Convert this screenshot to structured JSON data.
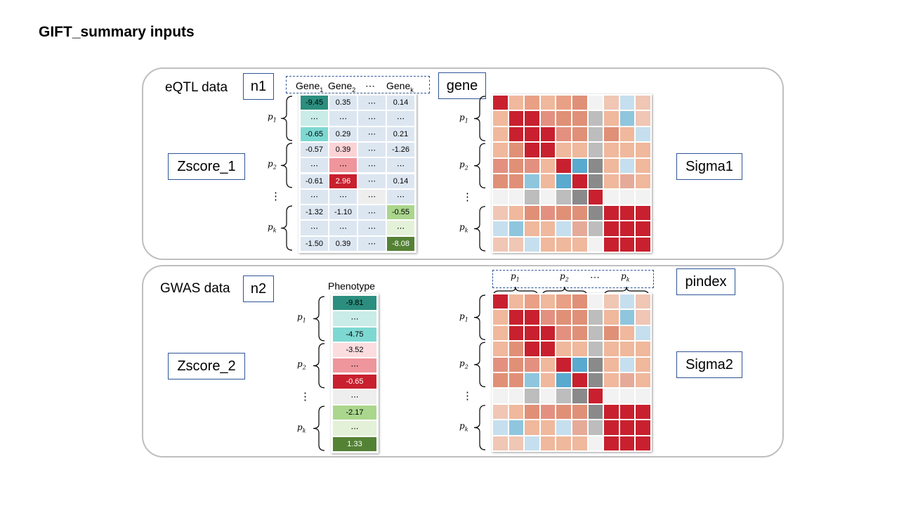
{
  "title": "GIFT_summary inputs",
  "panel1": {
    "label": "eQTL data",
    "n_box": "n1",
    "gene_box": "gene",
    "z_box": "Zscore_1",
    "sigma_box": "Sigma1",
    "col_headers": [
      "Gene",
      "Gene",
      "⋯",
      "Gene"
    ],
    "col_subs": [
      "1",
      "2",
      "",
      "k"
    ],
    "rows": [
      [
        "-9.45",
        "0.35",
        "⋯",
        "0.14"
      ],
      [
        "⋯",
        "⋯",
        "⋯",
        "⋯"
      ],
      [
        "-0.65",
        "0.29",
        "⋯",
        "0.21"
      ],
      [
        "-0.57",
        "0.39",
        "⋯",
        "-1.26"
      ],
      [
        "⋯",
        "⋯",
        "⋯",
        "⋯"
      ],
      [
        "-0.61",
        "2.96",
        "⋯",
        "0.14"
      ],
      [
        "⋯",
        "⋯",
        "⋯",
        "⋯"
      ],
      [
        "-1.32",
        "-1.10",
        "⋯",
        "-0.55"
      ],
      [
        "⋯",
        "⋯",
        "⋯",
        "⋯"
      ],
      [
        "-1.50",
        "0.39",
        "⋯",
        "-8.08"
      ]
    ],
    "cell_colors": [
      [
        "#2b8e7e",
        "#dce6f1",
        "#dce6f1",
        "#dce6f1"
      ],
      [
        "#c9ece8",
        "#dce6f1",
        "#dce6f1",
        "#dce6f1"
      ],
      [
        "#7dd8d2",
        "#dce6f1",
        "#dce6f1",
        "#dce6f1"
      ],
      [
        "#dce6f1",
        "#fbd3d7",
        "#dce6f1",
        "#dce6f1"
      ],
      [
        "#dce6f1",
        "#ef959c",
        "#dce6f1",
        "#dce6f1"
      ],
      [
        "#dce6f1",
        "#c8202e",
        "#dce6f1",
        "#dce6f1"
      ],
      [
        "#dce6f1",
        "#dce6f1",
        "#eeeeee",
        "#dce6f1"
      ],
      [
        "#dce6f1",
        "#dce6f1",
        "#dce6f1",
        "#aad68d"
      ],
      [
        "#dce6f1",
        "#dce6f1",
        "#dce6f1",
        "#e4f1d9"
      ],
      [
        "#dce6f1",
        "#dce6f1",
        "#dce6f1",
        "#548235"
      ]
    ]
  },
  "panel2": {
    "label": "GWAS data",
    "n_box": "n2",
    "pindex_box": "pindex",
    "z_box": "Zscore_2",
    "sigma_box": "Sigma2",
    "phenotype_header": "Phenotype",
    "values": [
      "-9.81",
      "⋯",
      "-4.75",
      "-3.52",
      "⋯",
      "-0.65",
      "⋯",
      "-2.17",
      "⋯",
      "1.33"
    ],
    "value_colors": [
      "#2b8e7e",
      "#c9ece8",
      "#7dd8d2",
      "#fbdcdf",
      "#ef959c",
      "#c8202e",
      "#eeeeee",
      "#aad68d",
      "#e4f1d9",
      "#548235"
    ]
  },
  "row_labels": [
    {
      "base": "p",
      "sub": "1"
    },
    {
      "base": "p",
      "sub": "2"
    },
    {
      "base": "p",
      "sub": "k"
    }
  ],
  "vdots": "⋮",
  "hdots": "⋯",
  "heatmap": [
    [
      "#c8202e",
      "#f0b89c",
      "#e9a085",
      "#f0b89c",
      "#e9a085",
      "#e09077",
      "#f2f2f2",
      "#f0c6b4",
      "#c6dfee",
      "#f0c6b4"
    ],
    [
      "#f0b89c",
      "#c8202e",
      "#c8202e",
      "#e39080",
      "#e09077",
      "#e09077",
      "#bdbdbd",
      "#f0b89c",
      "#8fc6dd",
      "#f0c6b4"
    ],
    [
      "#f0b89c",
      "#c8202e",
      "#c8202e",
      "#c8202e",
      "#e39080",
      "#e09077",
      "#bdbdbd",
      "#e09077",
      "#f0b89c",
      "#c6dfee"
    ],
    [
      "#f0b89c",
      "#e09077",
      "#c8202e",
      "#c8202e",
      "#f0b89c",
      "#f0b89c",
      "#bdbdbd",
      "#f0b89c",
      "#f0b89c",
      "#f0b89c"
    ],
    [
      "#e39080",
      "#e09077",
      "#e39080",
      "#f0b89c",
      "#c8202e",
      "#5aa9cf",
      "#8a8a8a",
      "#f0b89c",
      "#c6dfee",
      "#f0b89c"
    ],
    [
      "#e09077",
      "#e09077",
      "#8fc6dd",
      "#f0b89c",
      "#5aa9cf",
      "#c8202e",
      "#8a8a8a",
      "#f0b89c",
      "#e6aa99",
      "#f0b89c"
    ],
    [
      "#f2f2f2",
      "#f2f2f2",
      "#bdbdbd",
      "#f2f2f2",
      "#bdbdbd",
      "#8a8a8a",
      "#c8202e",
      "#f2f2f2",
      "#f2f2f2",
      "#f2f2f2"
    ],
    [
      "#f0c6b4",
      "#f0b89c",
      "#e09077",
      "#e39080",
      "#e09077",
      "#e09077",
      "#8a8a8a",
      "#c8202e",
      "#c8202e",
      "#c8202e"
    ],
    [
      "#c6dfee",
      "#8fc6dd",
      "#f0b89c",
      "#f0b89c",
      "#c6dfee",
      "#e6aa99",
      "#bdbdbd",
      "#c8202e",
      "#c8202e",
      "#c8202e"
    ],
    [
      "#f0c6b4",
      "#f0c6b4",
      "#c6dfee",
      "#f0b89c",
      "#f0b89c",
      "#f0b89c",
      "#f2f2f2",
      "#c8202e",
      "#c8202e",
      "#c8202e"
    ]
  ]
}
